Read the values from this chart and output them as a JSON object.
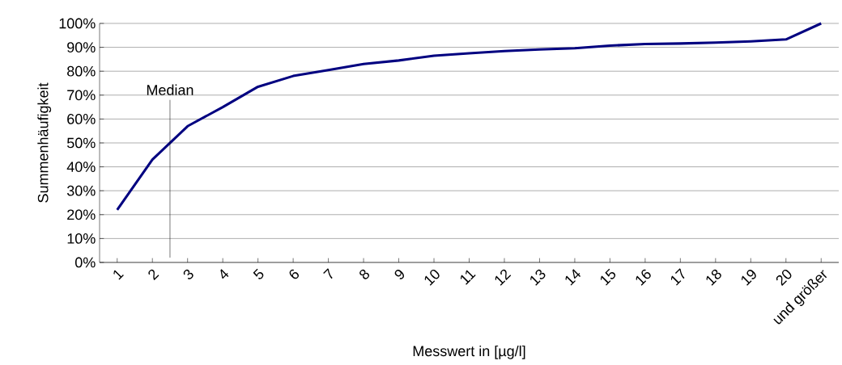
{
  "chart_data": {
    "type": "line",
    "xlabel": "Messwert in [µg/l]",
    "ylabel": "Summenhäufigkeit",
    "x": [
      1,
      2,
      3,
      4,
      5,
      6,
      7,
      8,
      9,
      10,
      11,
      12,
      13,
      14,
      15,
      16,
      17,
      18,
      19,
      20,
      21
    ],
    "series": [
      {
        "color": "#000080",
        "values": [
          22,
          43,
          57,
          65,
          73.5,
          78,
          80.5,
          83,
          84.5,
          86.5,
          87.5,
          88.4,
          89.1,
          89.6,
          90.7,
          91.4,
          91.6,
          92,
          92.5,
          93.3,
          100
        ]
      }
    ],
    "xlim": [
      0.5,
      21.5
    ],
    "xticks": [
      1,
      2,
      3,
      4,
      5,
      6,
      7,
      8,
      9,
      10,
      11,
      12,
      13,
      14,
      15,
      16,
      17,
      18,
      19,
      20,
      {
        "value": 21,
        "label": "und größer"
      }
    ],
    "ylim": [
      0,
      100
    ],
    "yticks": [
      {
        "value": 0,
        "label": "0%"
      },
      {
        "value": 10,
        "label": "10%"
      },
      {
        "value": 20,
        "label": "20%"
      },
      {
        "value": 30,
        "label": "30%"
      },
      {
        "value": 40,
        "label": "40%"
      },
      {
        "value": 50,
        "label": "50%"
      },
      {
        "value": 60,
        "label": "60%"
      },
      {
        "value": 70,
        "label": "70%"
      },
      {
        "value": 80,
        "label": "80%"
      },
      {
        "value": 90,
        "label": "90%"
      },
      {
        "value": 100,
        "label": "100%"
      }
    ],
    "grid": "y",
    "marker": "none",
    "line_style": "solid",
    "ref_lines": [
      {
        "axis": "x",
        "value": 2.5,
        "label": "Median"
      }
    ]
  }
}
